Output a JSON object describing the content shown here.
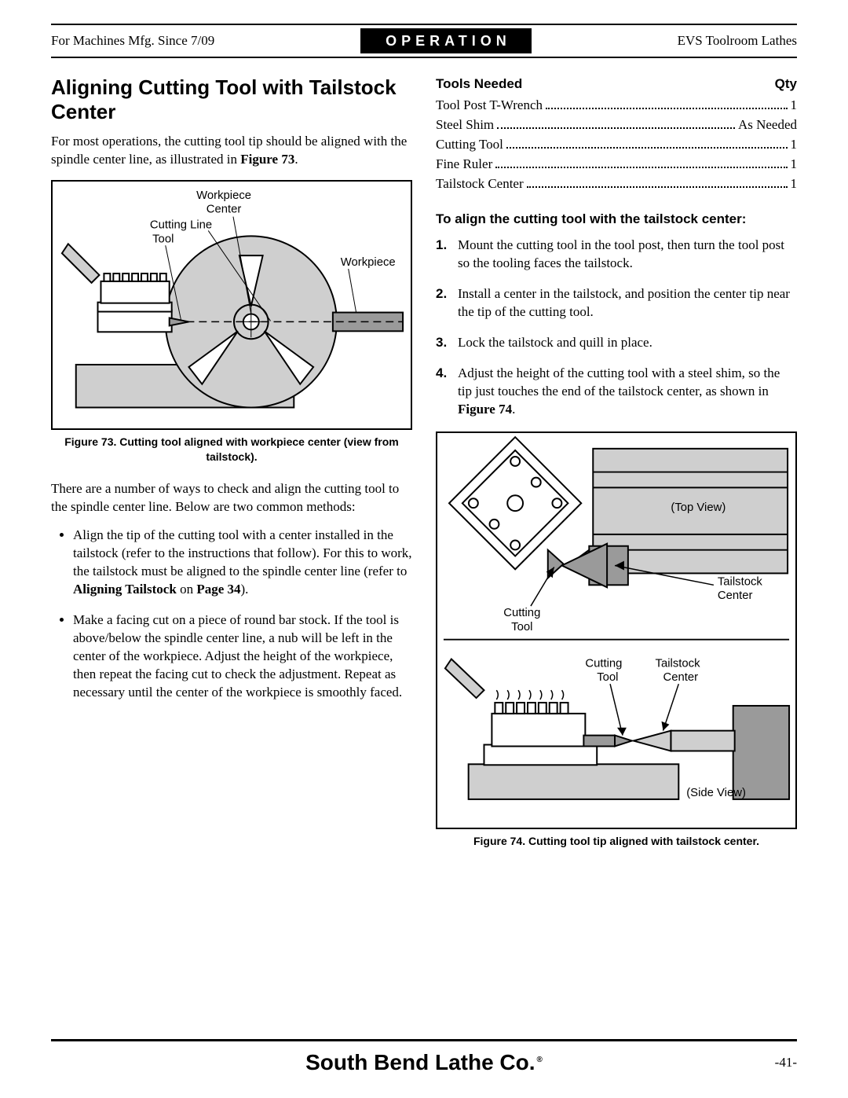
{
  "header": {
    "left": "For Machines Mfg. Since 7/09",
    "center": "OPERATION",
    "right": "EVS Toolroom Lathes"
  },
  "left_column": {
    "heading": "Aligning Cutting Tool with Tailstock Center",
    "intro_before_bold": "For most operations, the cutting tool tip should be aligned with the spindle center line, as illustrated in ",
    "intro_bold": "Figure 73",
    "intro_after_bold": ".",
    "figure73": {
      "caption": "Figure 73. Cutting tool aligned with workpiece center (view from tailstock).",
      "labels": {
        "workpiece_center_l1": "Workpiece",
        "workpiece_center_l2": "Center",
        "cutting_line": "Cutting  Line",
        "tool": "Tool",
        "workpiece": "Workpiece"
      },
      "colors": {
        "fill_grey": "#cfcfcf",
        "fill_dark": "#9a9a9a",
        "stroke": "#000000",
        "bg": "#ffffff"
      }
    },
    "para2": "There are a number of ways to check and align the cutting tool to the spindle center line. Below are two common methods:",
    "bullets": [
      {
        "before1": "Align the tip of the cutting tool with a center installed in the tailstock (refer to the instructions that follow). For this to work, the tailstock must be aligned to the spindle center line (refer to ",
        "bold1": "Aligning Tailstock",
        "mid": " on ",
        "bold2": "Page 34",
        "after": ")."
      },
      {
        "text": "Make a facing cut on a piece of round bar stock. If the tool is above/below the spindle center line, a nub will be left in the center of the workpiece. Adjust the height of the workpiece, then repeat the facing cut to check the adjustment. Repeat as necessary until the center of the workpiece is smoothly faced."
      }
    ]
  },
  "right_column": {
    "tools_header_left": "Tools Needed",
    "tools_header_right": "Qty",
    "tools": [
      {
        "name": "Tool Post T-Wrench",
        "qty": "1"
      },
      {
        "name": "Steel Shim",
        "qty": "As Needed"
      },
      {
        "name": "Cutting Tool",
        "qty": "1"
      },
      {
        "name": "Fine Ruler",
        "qty": "1"
      },
      {
        "name": "Tailstock Center",
        "qty": "1"
      }
    ],
    "steps_heading": "To align the cutting tool with the tailstock center:",
    "steps": [
      {
        "n": "1.",
        "text": "Mount the cutting tool in the tool post, then turn the tool post so the tooling faces the tailstock."
      },
      {
        "n": "2.",
        "text": "Install a center in the tailstock, and position the center tip near the tip of the cutting tool."
      },
      {
        "n": "3.",
        "text": "Lock the tailstock and quill in place."
      },
      {
        "n": "4.",
        "before": "Adjust the height of the cutting tool with a steel shim, so the tip just touches the end of the tailstock center, as shown in ",
        "bold": "Figure 74",
        "after": "."
      }
    ],
    "figure74": {
      "caption": "Figure 74. Cutting tool tip aligned with tailstock center.",
      "labels": {
        "top_view": "(Top View)",
        "tailstock_center": "Tailstock",
        "tailstock_center2": "Center",
        "cutting": "Cutting",
        "tool": "Tool",
        "side_view": "(Side View)"
      },
      "colors": {
        "fill_grey": "#cfcfcf",
        "fill_dark": "#9a9a9a",
        "stroke": "#000000",
        "bg": "#ffffff"
      }
    }
  },
  "footer": {
    "brand": "South Bend Lathe Co.",
    "reg": "®",
    "page": "-41-"
  }
}
